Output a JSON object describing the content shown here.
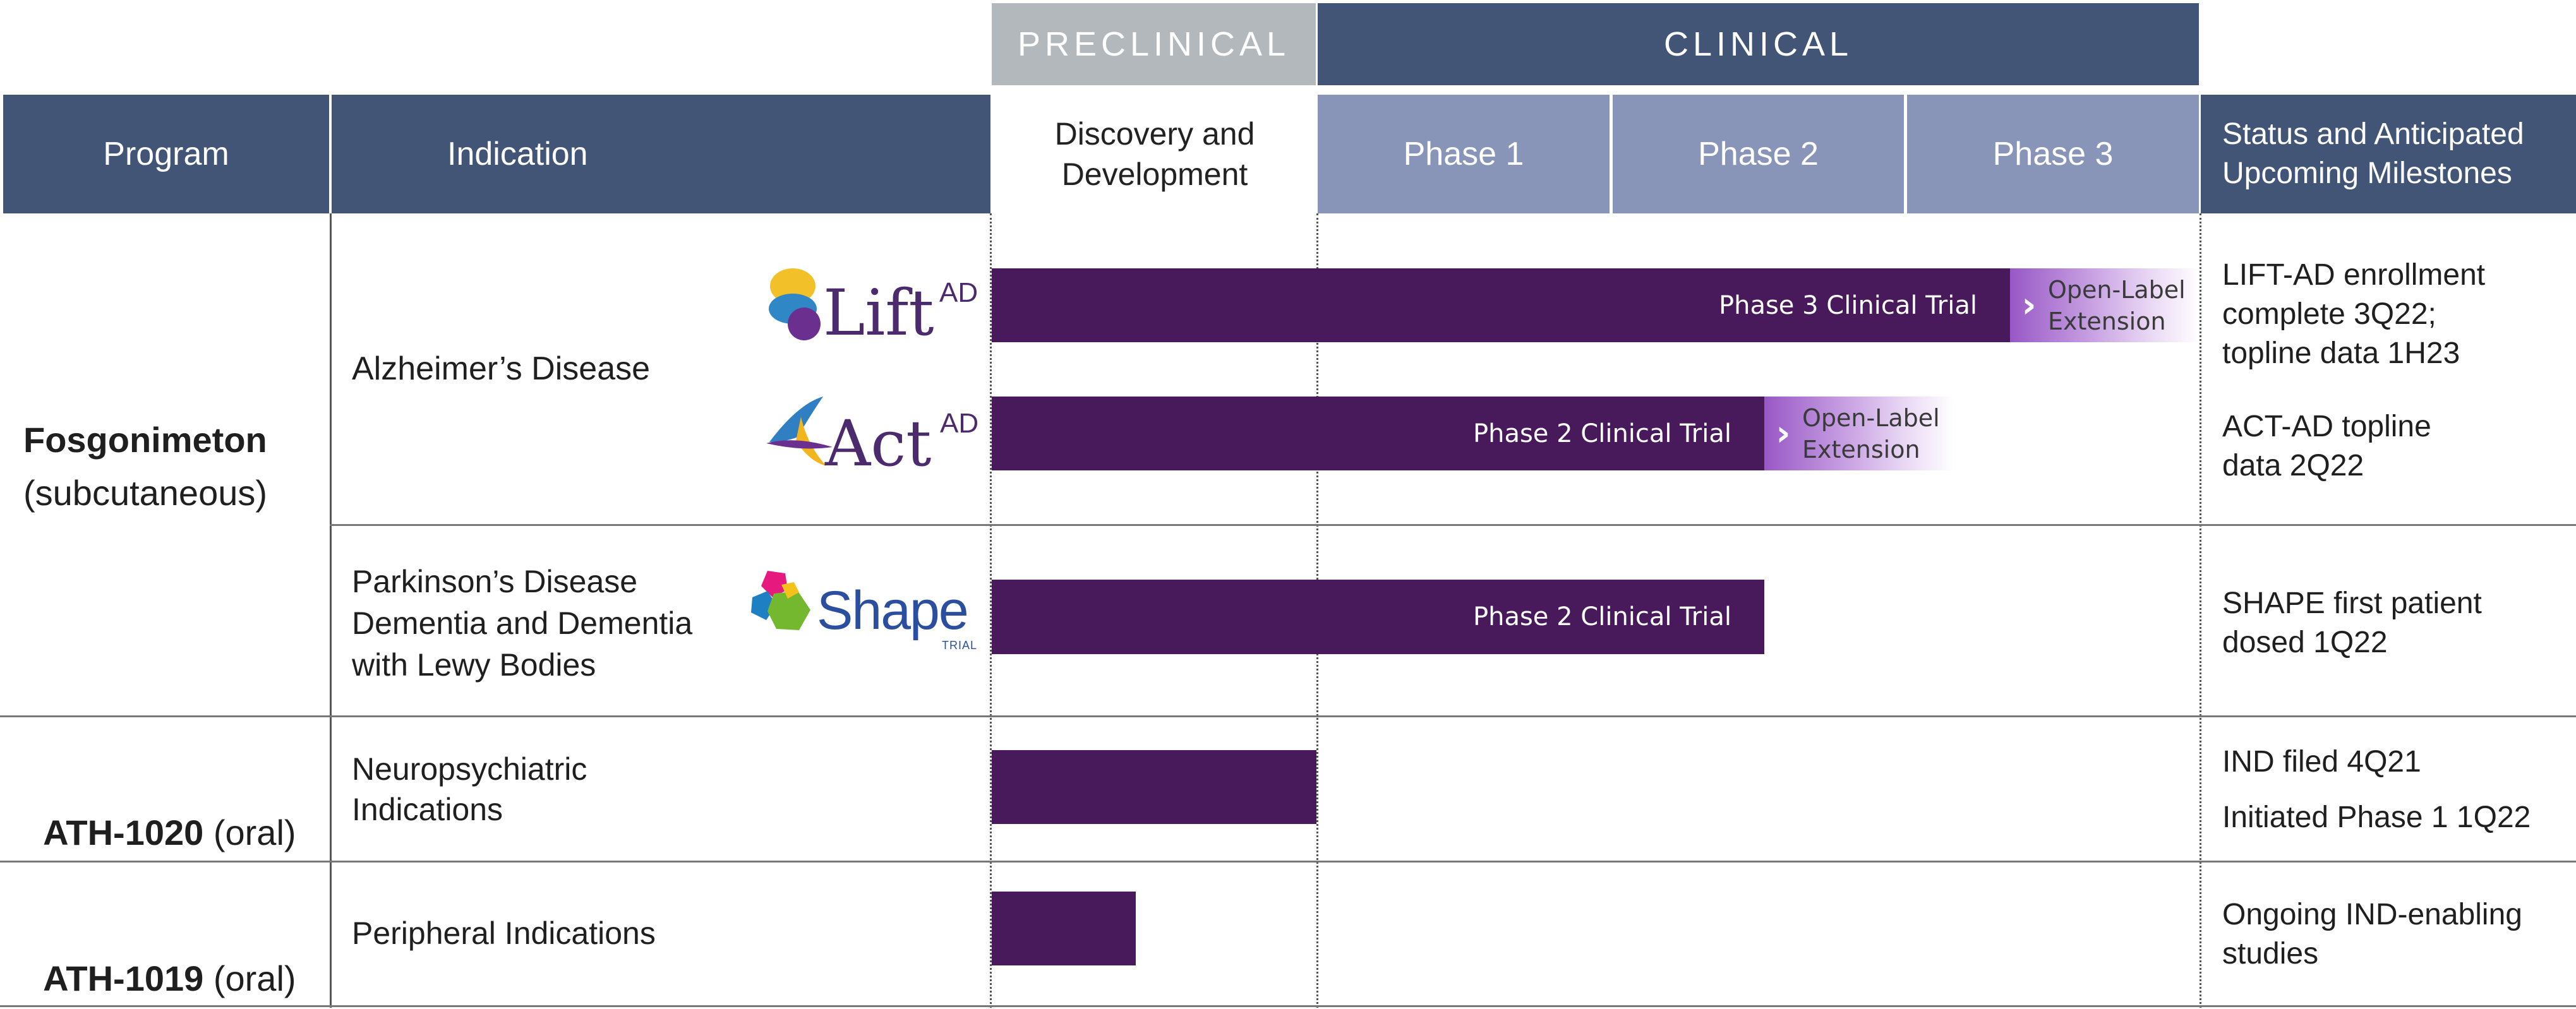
{
  "header": {
    "preclinical": "PRECLINICAL",
    "clinical": "CLINICAL",
    "program": "Program",
    "indication": "Indication",
    "discovery": "Discovery and Development",
    "phase1": "Phase 1",
    "phase2": "Phase 2",
    "phase3": "Phase 3",
    "status": "Status and Anticipated Upcoming Milestones"
  },
  "programs": {
    "fosgonimeton": {
      "name": "Fosgonimeton",
      "route": "(subcutaneous)"
    },
    "ath1020": {
      "name": "ATH-1020",
      "route": " (oral)"
    },
    "ath1019": {
      "name": "ATH-1019",
      "route": " (oral)"
    }
  },
  "indications": {
    "alzheimers": "Alzheimer’s Disease",
    "parkinsons": "Parkinson’s Disease Dementia and Dementia with Lewy Bodies",
    "neuro": "Neuropsychiatric Indications",
    "peripheral": "Peripheral Indications"
  },
  "logos": {
    "lift": {
      "text": "Lift",
      "sup": "AD"
    },
    "act": {
      "text": "Act",
      "sup": "AD"
    },
    "shape": {
      "text": "Shape",
      "sub": "TRIAL"
    }
  },
  "bars": {
    "lift": {
      "label": "Phase 3 Clinical Trial",
      "ext": "Open-Label Extension"
    },
    "act": {
      "label": "Phase 2 Clinical Trial",
      "ext": "Open-Label Extension"
    },
    "shape": {
      "label": "Phase 2 Clinical Trial"
    }
  },
  "status": {
    "lift": "LIFT-AD enrollment complete 3Q22; topline data 1H23",
    "act": "ACT-AD topline data 2Q22",
    "shape": "SHAPE first patient dosed 1Q22",
    "ath1020_a": "IND filed 4Q21",
    "ath1020_b": "Initiated Phase 1 1Q22",
    "ath1019": "Ongoing IND-enabling studies"
  },
  "colors": {
    "header_dark": "#435577",
    "header_light": "#8895b8",
    "preclinical_gray": "#b3b8bd",
    "bar_purple": "#481a5c"
  }
}
